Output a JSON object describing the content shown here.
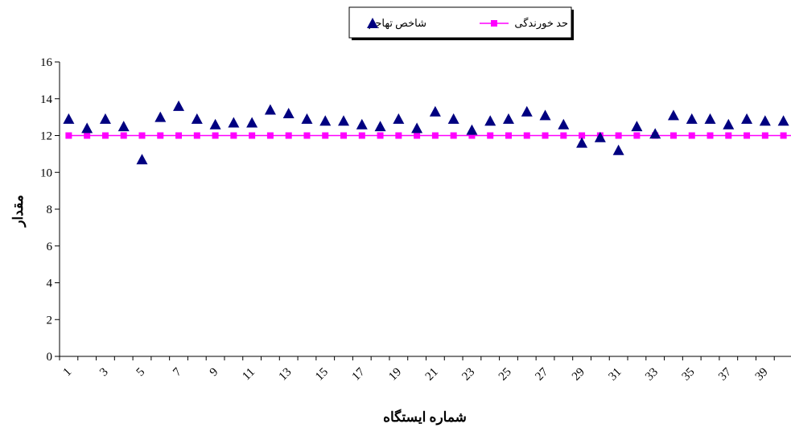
{
  "chart_data": {
    "type": "scatter",
    "title": "",
    "xlabel": "شماره ایستگاه",
    "ylabel": "مقدار",
    "ylim": [
      0,
      16
    ],
    "yticks": [
      0,
      2,
      4,
      6,
      8,
      10,
      12,
      14,
      16
    ],
    "x": [
      1,
      2,
      3,
      4,
      5,
      6,
      7,
      8,
      9,
      10,
      11,
      12,
      13,
      14,
      15,
      16,
      17,
      18,
      19,
      20,
      21,
      22,
      23,
      24,
      25,
      26,
      27,
      28,
      29,
      30,
      31,
      32,
      33,
      34,
      35,
      36,
      37,
      38,
      39,
      40
    ],
    "xticks": [
      1,
      3,
      5,
      7,
      9,
      11,
      13,
      15,
      17,
      19,
      21,
      23,
      25,
      27,
      29,
      31,
      33,
      35,
      37,
      39
    ],
    "grid": false,
    "legend_position": "top-center",
    "series": [
      {
        "name": "شاخص تهاجم",
        "marker": "triangle",
        "color": "#000080",
        "values": [
          12.9,
          12.4,
          12.9,
          12.5,
          10.7,
          13.0,
          13.6,
          12.9,
          12.6,
          12.7,
          12.7,
          13.4,
          13.2,
          12.9,
          12.8,
          12.8,
          12.6,
          12.5,
          12.9,
          12.4,
          13.3,
          12.9,
          12.3,
          12.8,
          12.9,
          13.3,
          13.1,
          12.6,
          11.6,
          11.9,
          11.2,
          12.5,
          12.1,
          13.1,
          12.9,
          12.9,
          12.6,
          12.9,
          12.8,
          12.8
        ]
      },
      {
        "name": "حد خورندگی",
        "marker": "square-line",
        "color": "#ff00ff",
        "values": [
          12,
          12,
          12,
          12,
          12,
          12,
          12,
          12,
          12,
          12,
          12,
          12,
          12,
          12,
          12,
          12,
          12,
          12,
          12,
          12,
          12,
          12,
          12,
          12,
          12,
          12,
          12,
          12,
          12,
          12,
          12,
          12,
          12,
          12,
          12,
          12,
          12,
          12,
          12,
          12
        ]
      }
    ]
  }
}
